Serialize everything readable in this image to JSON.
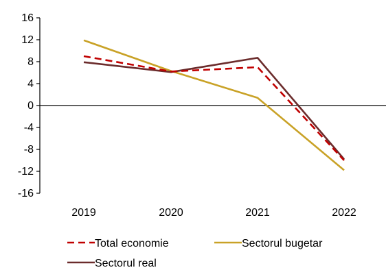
{
  "chart_data": {
    "type": "line",
    "title": "",
    "xlabel": "",
    "ylabel": "",
    "categories": [
      "2019",
      "2020",
      "2021",
      "2022"
    ],
    "ylim": [
      -16,
      16
    ],
    "yticks": [
      16,
      12,
      8,
      4,
      0,
      -4,
      -8,
      -12,
      -16
    ],
    "grid": false,
    "legend_position": "bottom",
    "series": [
      {
        "name": "Total economie",
        "values": [
          9.0,
          6.2,
          7.0,
          -10.0
        ],
        "color": "#c00000",
        "dash": "dashed"
      },
      {
        "name": "Sectorul bugetar",
        "values": [
          11.9,
          6.3,
          1.4,
          -11.8
        ],
        "color": "#c9a227",
        "dash": "solid"
      },
      {
        "name": "Sectorul real",
        "values": [
          7.9,
          6.1,
          8.7,
          -9.8
        ],
        "color": "#6b2c2c",
        "dash": "solid"
      }
    ]
  }
}
